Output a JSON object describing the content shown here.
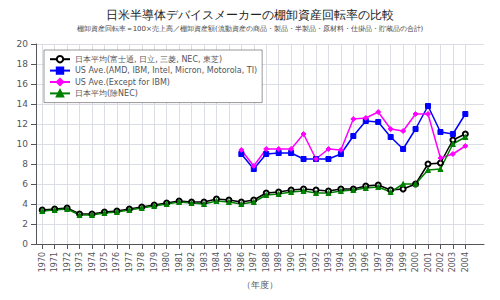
{
  "chart_data": {
    "type": "line",
    "title": "日米半導体デバイスメーカーの棚卸資産回転率の比較",
    "subtitle": "棚卸資産回転率＝100×売上高／棚卸資産額(流動資産の商品・製品・半製品・原材料・仕掛品・貯蔵品の合計)",
    "xlabel": "（年度）",
    "x": [
      1970,
      1971,
      1972,
      1973,
      1974,
      1975,
      1976,
      1977,
      1978,
      1979,
      1980,
      1981,
      1982,
      1983,
      1984,
      1985,
      1986,
      1987,
      1988,
      1989,
      1990,
      1991,
      1992,
      1993,
      1994,
      1995,
      1996,
      1997,
      1998,
      1999,
      2000,
      2001,
      2002,
      2003,
      2004
    ],
    "xlim": [
      1969.5,
      2005.5
    ],
    "xticks": [
      1970,
      1971,
      1972,
      1973,
      1974,
      1975,
      1976,
      1977,
      1978,
      1979,
      1980,
      1981,
      1982,
      1983,
      1984,
      1985,
      1986,
      1987,
      1988,
      1989,
      1990,
      1991,
      1992,
      1993,
      1994,
      1995,
      1996,
      1997,
      1998,
      1999,
      2000,
      2001,
      2002,
      2003,
      2004
    ],
    "ylim": [
      0,
      20
    ],
    "yticks": [
      0,
      2,
      4,
      6,
      8,
      10,
      12,
      14,
      16,
      18,
      20
    ],
    "grid": true,
    "legend": "upper left",
    "series": [
      {
        "name": "日本平均(富士通, 日立, 三菱, NEC, 東芝)",
        "color": "#000000",
        "marker": "circle",
        "values": [
          3.4,
          3.5,
          3.6,
          3.0,
          3.0,
          3.2,
          3.3,
          3.5,
          3.7,
          3.9,
          4.1,
          4.3,
          4.2,
          4.2,
          4.5,
          4.4,
          4.2,
          4.4,
          5.1,
          5.2,
          5.4,
          5.5,
          5.4,
          5.3,
          5.5,
          5.5,
          5.8,
          5.9,
          5.4,
          5.5,
          6.0,
          8.0,
          8.1,
          10.4,
          11.0
        ]
      },
      {
        "name": "US Ave.(AMD, IBM, Intel, Micron, Motorola, TI)",
        "color": "#0000FF",
        "marker": "square",
        "values": [
          null,
          null,
          null,
          null,
          null,
          null,
          null,
          null,
          null,
          null,
          null,
          null,
          null,
          null,
          null,
          null,
          9.0,
          7.5,
          9.0,
          9.1,
          9.1,
          8.5,
          8.5,
          8.5,
          9.0,
          10.8,
          12.3,
          12.2,
          10.7,
          9.5,
          11.5,
          13.8,
          11.2,
          11.0,
          13.0
        ]
      },
      {
        "name": "US Ave.(Except for IBM)",
        "color": "#FF00FF",
        "marker": "diamond",
        "values": [
          null,
          null,
          null,
          null,
          null,
          null,
          null,
          null,
          null,
          null,
          null,
          null,
          null,
          null,
          null,
          null,
          9.4,
          7.8,
          9.5,
          9.5,
          9.5,
          11.0,
          8.5,
          9.5,
          9.4,
          12.5,
          12.6,
          13.2,
          11.5,
          11.3,
          13.0,
          13.0,
          8.6,
          9.0,
          9.8
        ]
      },
      {
        "name": "日本平均(除NEC)",
        "color": "#008000",
        "marker": "triangle",
        "values": [
          3.3,
          3.4,
          3.5,
          2.9,
          2.9,
          3.1,
          3.2,
          3.4,
          3.6,
          3.8,
          4.0,
          4.2,
          4.1,
          4.0,
          4.3,
          4.2,
          4.0,
          4.2,
          4.9,
          5.0,
          5.2,
          5.3,
          5.1,
          5.1,
          5.3,
          5.4,
          5.6,
          5.7,
          5.2,
          6.0,
          6.0,
          7.4,
          7.5,
          10.0,
          10.7
        ]
      }
    ]
  }
}
